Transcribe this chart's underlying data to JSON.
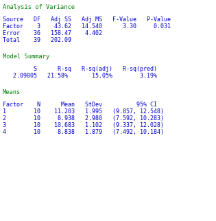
{
  "title1": "Analysis of Variance",
  "anova_header": "Source   DF   Adj SS   Adj MS   F-Value   P-Value",
  "anova_rows": [
    "Factor    3    43.62   14.540      3.30     0.031",
    "Error    36   158.47    4.402",
    "Total    39   202.09"
  ],
  "title2": "Model Summary",
  "model_header": "         S      R-sq   R-sq(adj)   R-sq(pred)",
  "model_row": "   2.09805   21.58%       15.05%        3.19%",
  "title3": "Means",
  "means_header": "Factor    N      Mean   StDev          95% CI",
  "means_rows": [
    "1        10    11.203   1.995   (9.857, 12.548)",
    "2        10     8.938   2.980   (7.592, 10.283)",
    "3        10    10.683   1.102   (9.337, 12.028)",
    "4        10     8.838   1.879   (7.492, 10.184)"
  ],
  "bg_color": "#ffffff",
  "text_color": "#0000cd",
  "title_color": "#008000",
  "font_family": "monospace",
  "font_size": 6.0,
  "title_font_size": 6.2
}
